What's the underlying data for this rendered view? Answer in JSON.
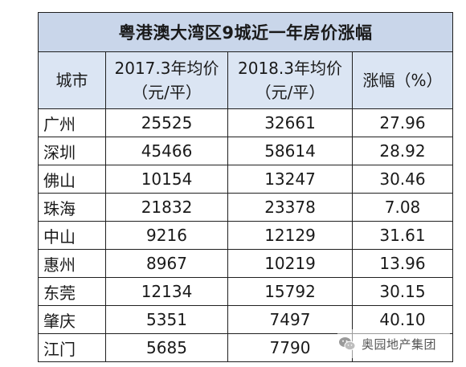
{
  "table": {
    "title": "粤港澳大湾区9城近一年房价涨幅",
    "headers": [
      {
        "line1": "城市",
        "line2": ""
      },
      {
        "line1": "2017.3年均价",
        "line2": "（元/平）"
      },
      {
        "line1": "2018.3年均价",
        "line2": "（元/平）"
      },
      {
        "line1": "涨幅（%）",
        "line2": ""
      }
    ],
    "rows": [
      {
        "city": "广州",
        "price_2017": "25525",
        "price_2018": "32661",
        "growth": "27.96"
      },
      {
        "city": "深圳",
        "price_2017": "45466",
        "price_2018": "58614",
        "growth": "28.92"
      },
      {
        "city": "佛山",
        "price_2017": "10154",
        "price_2018": "13247",
        "growth": "30.46"
      },
      {
        "city": "珠海",
        "price_2017": "21832",
        "price_2018": "23378",
        "growth": "7.08"
      },
      {
        "city": "中山",
        "price_2017": "9216",
        "price_2018": "12129",
        "growth": "31.61"
      },
      {
        "city": "惠州",
        "price_2017": "8967",
        "price_2018": "10219",
        "growth": "13.96"
      },
      {
        "city": "东莞",
        "price_2017": "12134",
        "price_2018": "15792",
        "growth": "30.15"
      },
      {
        "city": "肇庆",
        "price_2017": "5351",
        "price_2018": "7497",
        "growth": "40.10"
      },
      {
        "city": "江门",
        "price_2017": "5685",
        "price_2018": "7790",
        "growth": ""
      }
    ]
  },
  "watermark": {
    "text": "奥园地产集团",
    "icon": "wechat-icon"
  },
  "colors": {
    "title_bg": "#c9d6ea",
    "header_bg": "#dbe5f3",
    "border": "#1f1f1f"
  }
}
